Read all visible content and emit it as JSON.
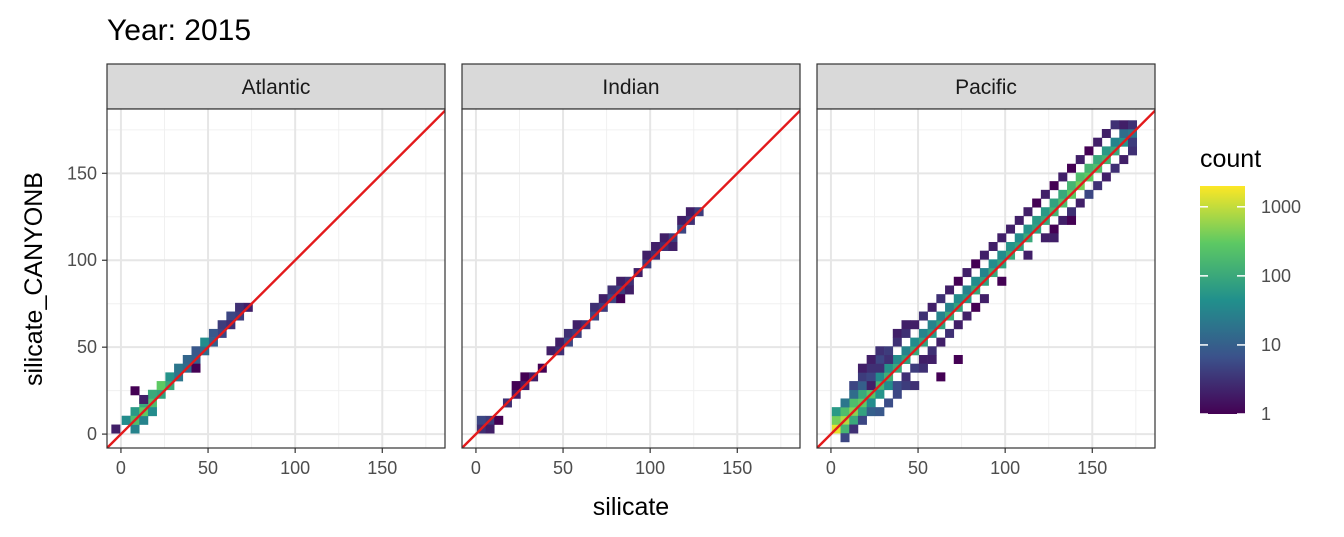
{
  "chart_data": {
    "type": "heatmap",
    "title": "Year: 2015",
    "xlabel": "silicate",
    "ylabel": "silicate_CANYONB",
    "x_ticks": [
      0,
      50,
      100,
      150
    ],
    "y_ticks": [
      0,
      50,
      100,
      150
    ],
    "xlim": [
      -8,
      186
    ],
    "ylim": [
      -8,
      187
    ],
    "grid": true,
    "legend_position": "right",
    "reference_line": {
      "slope": 1,
      "intercept": 0,
      "color": "#e31a1c"
    },
    "bin_width": 5,
    "colorscale": {
      "name": "viridis",
      "title": "count",
      "scale": "log10",
      "range": [
        1,
        2000
      ],
      "ticks": [
        1,
        10,
        100,
        1000
      ],
      "tick_labels": [
        "1",
        "10",
        "100",
        "1000"
      ],
      "colors": [
        "#440154",
        "#3b528b",
        "#21908c",
        "#5dc963",
        "#fde725"
      ]
    },
    "panels": [
      {
        "name": "Atlantic",
        "bins": [
          [
            -3,
            3,
            2
          ],
          [
            3,
            8,
            20
          ],
          [
            8,
            3,
            30
          ],
          [
            8,
            13,
            60
          ],
          [
            3,
            8,
            40
          ],
          [
            8,
            8,
            200
          ],
          [
            13,
            8,
            30
          ],
          [
            13,
            13,
            300
          ],
          [
            13,
            18,
            100
          ],
          [
            18,
            18,
            200
          ],
          [
            18,
            13,
            40
          ],
          [
            18,
            23,
            100
          ],
          [
            23,
            23,
            80
          ],
          [
            23,
            28,
            300
          ],
          [
            28,
            28,
            100
          ],
          [
            28,
            33,
            50
          ],
          [
            33,
            33,
            20
          ],
          [
            33,
            38,
            20
          ],
          [
            38,
            38,
            15
          ],
          [
            38,
            43,
            12
          ],
          [
            43,
            43,
            10
          ],
          [
            43,
            48,
            8
          ],
          [
            48,
            48,
            15
          ],
          [
            48,
            53,
            40
          ],
          [
            53,
            53,
            10
          ],
          [
            53,
            58,
            8
          ],
          [
            58,
            58,
            5
          ],
          [
            58,
            63,
            4
          ],
          [
            63,
            68,
            5
          ],
          [
            68,
            68,
            4
          ],
          [
            68,
            73,
            3
          ],
          [
            73,
            73,
            2
          ],
          [
            63,
            63,
            3
          ],
          [
            8,
            25,
            1
          ],
          [
            13,
            20,
            2
          ],
          [
            43,
            38,
            1
          ]
        ]
      },
      {
        "name": "Indian",
        "bins": [
          [
            3,
            8,
            5
          ],
          [
            3,
            3,
            3
          ],
          [
            8,
            8,
            4
          ],
          [
            8,
            3,
            2
          ],
          [
            13,
            8,
            1
          ],
          [
            18,
            18,
            3
          ],
          [
            23,
            23,
            2
          ],
          [
            23,
            28,
            1
          ],
          [
            28,
            28,
            2
          ],
          [
            28,
            33,
            1
          ],
          [
            33,
            33,
            2
          ],
          [
            38,
            38,
            1
          ],
          [
            43,
            48,
            2
          ],
          [
            48,
            48,
            3
          ],
          [
            48,
            53,
            2
          ],
          [
            53,
            53,
            5
          ],
          [
            53,
            58,
            3
          ],
          [
            58,
            58,
            4
          ],
          [
            58,
            63,
            2
          ],
          [
            63,
            63,
            3
          ],
          [
            68,
            68,
            5
          ],
          [
            68,
            73,
            3
          ],
          [
            73,
            73,
            4
          ],
          [
            73,
            78,
            2
          ],
          [
            78,
            78,
            5
          ],
          [
            78,
            83,
            3
          ],
          [
            83,
            83,
            4
          ],
          [
            83,
            88,
            2
          ],
          [
            88,
            88,
            3
          ],
          [
            93,
            93,
            2
          ],
          [
            98,
            98,
            4
          ],
          [
            98,
            103,
            2
          ],
          [
            103,
            103,
            3
          ],
          [
            103,
            108,
            2
          ],
          [
            108,
            108,
            3
          ],
          [
            113,
            113,
            4
          ],
          [
            113,
            108,
            2
          ],
          [
            118,
            118,
            5
          ],
          [
            118,
            123,
            2
          ],
          [
            123,
            123,
            3
          ],
          [
            123,
            128,
            2
          ],
          [
            128,
            128,
            4
          ],
          [
            83,
            78,
            1
          ],
          [
            88,
            83,
            2
          ],
          [
            108,
            113,
            2
          ]
        ]
      },
      {
        "name": "Pacific",
        "bins": [
          [
            3,
            3,
            1500
          ],
          [
            3,
            8,
            400
          ],
          [
            8,
            8,
            800
          ],
          [
            8,
            3,
            150
          ],
          [
            3,
            13,
            60
          ],
          [
            8,
            13,
            200
          ],
          [
            13,
            13,
            500
          ],
          [
            13,
            8,
            100
          ],
          [
            13,
            18,
            200
          ],
          [
            18,
            18,
            300
          ],
          [
            18,
            13,
            80
          ],
          [
            18,
            23,
            100
          ],
          [
            23,
            23,
            250
          ],
          [
            23,
            18,
            40
          ],
          [
            23,
            28,
            80
          ],
          [
            28,
            28,
            150
          ],
          [
            28,
            23,
            50
          ],
          [
            28,
            33,
            40
          ],
          [
            33,
            33,
            120
          ],
          [
            33,
            28,
            40
          ],
          [
            33,
            38,
            50
          ],
          [
            38,
            38,
            100
          ],
          [
            38,
            43,
            40
          ],
          [
            43,
            43,
            80
          ],
          [
            43,
            48,
            30
          ],
          [
            48,
            48,
            100
          ],
          [
            48,
            53,
            40
          ],
          [
            53,
            53,
            80
          ],
          [
            53,
            58,
            30
          ],
          [
            58,
            58,
            60
          ],
          [
            58,
            63,
            30
          ],
          [
            63,
            63,
            80
          ],
          [
            63,
            68,
            30
          ],
          [
            68,
            68,
            100
          ],
          [
            68,
            73,
            30
          ],
          [
            73,
            73,
            80
          ],
          [
            73,
            78,
            40
          ],
          [
            78,
            78,
            60
          ],
          [
            78,
            83,
            30
          ],
          [
            83,
            83,
            100
          ],
          [
            83,
            88,
            40
          ],
          [
            88,
            88,
            80
          ],
          [
            88,
            93,
            30
          ],
          [
            93,
            93,
            100
          ],
          [
            93,
            98,
            40
          ],
          [
            98,
            98,
            80
          ],
          [
            98,
            103,
            40
          ],
          [
            103,
            103,
            100
          ],
          [
            103,
            108,
            50
          ],
          [
            108,
            108,
            80
          ],
          [
            108,
            113,
            40
          ],
          [
            113,
            113,
            100
          ],
          [
            113,
            118,
            50
          ],
          [
            118,
            118,
            80
          ],
          [
            118,
            123,
            60
          ],
          [
            123,
            123,
            100
          ],
          [
            123,
            128,
            60
          ],
          [
            128,
            128,
            150
          ],
          [
            128,
            133,
            80
          ],
          [
            133,
            133,
            200
          ],
          [
            133,
            138,
            100
          ],
          [
            138,
            138,
            300
          ],
          [
            138,
            143,
            150
          ],
          [
            143,
            143,
            400
          ],
          [
            143,
            148,
            200
          ],
          [
            148,
            148,
            300
          ],
          [
            148,
            153,
            150
          ],
          [
            153,
            153,
            200
          ],
          [
            153,
            158,
            100
          ],
          [
            158,
            158,
            150
          ],
          [
            158,
            163,
            60
          ],
          [
            163,
            163,
            100
          ],
          [
            163,
            168,
            30
          ],
          [
            168,
            168,
            50
          ],
          [
            168,
            173,
            15
          ],
          [
            173,
            173,
            20
          ],
          [
            8,
            18,
            20
          ],
          [
            13,
            23,
            15
          ],
          [
            13,
            28,
            5
          ],
          [
            18,
            28,
            10
          ],
          [
            18,
            33,
            4
          ],
          [
            23,
            33,
            5
          ],
          [
            23,
            38,
            3
          ],
          [
            28,
            43,
            5
          ],
          [
            28,
            48,
            3
          ],
          [
            33,
            48,
            4
          ],
          [
            38,
            53,
            3
          ],
          [
            38,
            58,
            2
          ],
          [
            43,
            58,
            3
          ],
          [
            43,
            63,
            2
          ],
          [
            48,
            63,
            2
          ],
          [
            53,
            68,
            3
          ],
          [
            58,
            73,
            2
          ],
          [
            63,
            78,
            3
          ],
          [
            68,
            83,
            2
          ],
          [
            73,
            88,
            1
          ],
          [
            78,
            93,
            2
          ],
          [
            83,
            98,
            1
          ],
          [
            88,
            103,
            2
          ],
          [
            93,
            108,
            2
          ],
          [
            98,
            113,
            2
          ],
          [
            103,
            118,
            2
          ],
          [
            108,
            123,
            2
          ],
          [
            113,
            128,
            2
          ],
          [
            118,
            133,
            1
          ],
          [
            123,
            138,
            2
          ],
          [
            128,
            143,
            1
          ],
          [
            133,
            148,
            2
          ],
          [
            138,
            153,
            1
          ],
          [
            143,
            158,
            2
          ],
          [
            148,
            163,
            1
          ],
          [
            153,
            168,
            2
          ],
          [
            158,
            173,
            2
          ],
          [
            163,
            178,
            3
          ],
          [
            168,
            178,
            2
          ],
          [
            173,
            178,
            3
          ],
          [
            23,
            43,
            2
          ],
          [
            23,
            28,
            2
          ],
          [
            33,
            43,
            3
          ],
          [
            18,
            38,
            2
          ],
          [
            28,
            38,
            3
          ],
          [
            13,
            3,
            3
          ],
          [
            18,
            8,
            5
          ],
          [
            23,
            13,
            10
          ],
          [
            28,
            13,
            8
          ],
          [
            33,
            18,
            6
          ],
          [
            38,
            23,
            5
          ],
          [
            38,
            28,
            6
          ],
          [
            43,
            28,
            4
          ],
          [
            43,
            33,
            3
          ],
          [
            48,
            38,
            4
          ],
          [
            53,
            43,
            2
          ],
          [
            58,
            48,
            3
          ],
          [
            63,
            53,
            2
          ],
          [
            68,
            58,
            3
          ],
          [
            73,
            63,
            2
          ],
          [
            73,
            43,
            1
          ],
          [
            78,
            68,
            2
          ],
          [
            83,
            73,
            1
          ],
          [
            88,
            78,
            2
          ],
          [
            98,
            88,
            1
          ],
          [
            113,
            103,
            2
          ],
          [
            123,
            113,
            2
          ],
          [
            128,
            118,
            1
          ],
          [
            133,
            123,
            2
          ],
          [
            138,
            128,
            3
          ],
          [
            143,
            133,
            2
          ],
          [
            148,
            138,
            5
          ],
          [
            153,
            143,
            3
          ],
          [
            158,
            148,
            2
          ],
          [
            163,
            153,
            3
          ],
          [
            168,
            158,
            2
          ],
          [
            173,
            163,
            3
          ],
          [
            173,
            168,
            4
          ],
          [
            128,
            113,
            2
          ],
          [
            138,
            123,
            1
          ],
          [
            53,
            38,
            3
          ],
          [
            58,
            43,
            2
          ],
          [
            63,
            33,
            1
          ],
          [
            48,
            28,
            3
          ],
          [
            8,
            -2,
            5
          ]
        ]
      }
    ]
  }
}
